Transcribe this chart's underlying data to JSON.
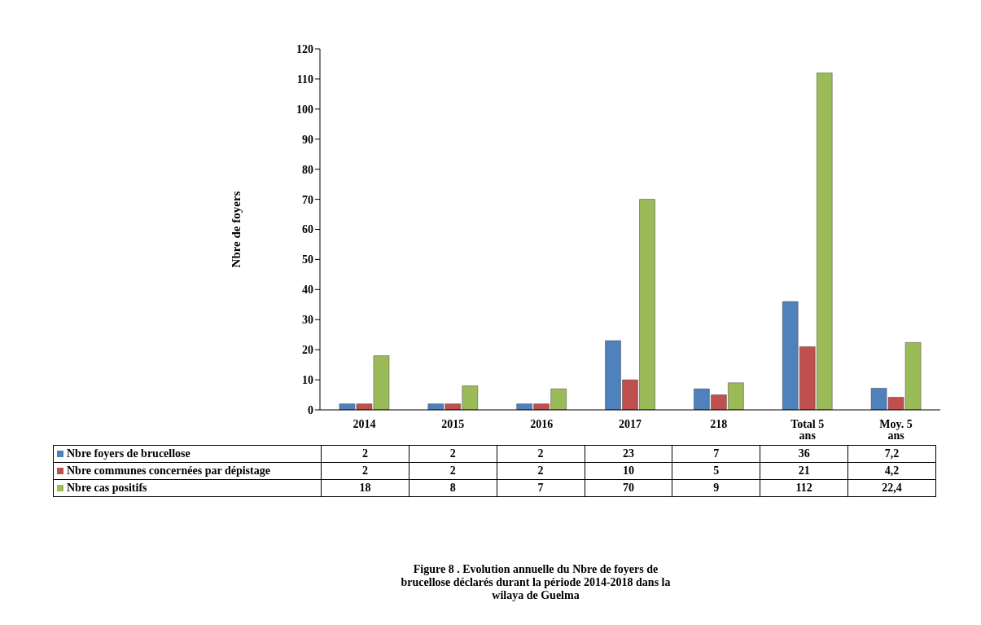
{
  "chart_data": {
    "type": "bar",
    "title": "Figure 8 . Evolution annuelle du Nbre de foyers de brucellose déclarés durant la période 2014-2018 dans la wilaya de Guelma",
    "ylabel": "Nbre de foyers",
    "categories": [
      "2014",
      "2015",
      "2016",
      "2017",
      "218",
      "Total 5 ans",
      "Moy. 5 ans"
    ],
    "series": [
      {
        "name": "Nbre foyers de brucellose",
        "color": "#4f81bd",
        "values": [
          2,
          2,
          2,
          23,
          7,
          36,
          7.2
        ],
        "value_labels": [
          "2",
          "2",
          "2",
          "23",
          "7",
          "36",
          "7,2"
        ]
      },
      {
        "name": "Nbre communes concernées par dépistage",
        "color": "#c0504d",
        "values": [
          2,
          2,
          2,
          10,
          5,
          21,
          4.2
        ],
        "value_labels": [
          "2",
          "2",
          "2",
          "10",
          "5",
          "21",
          "4,2"
        ]
      },
      {
        "name": "Nbre cas positifs",
        "color": "#9bbb59",
        "values": [
          18,
          8,
          7,
          70,
          9,
          112,
          22.4
        ],
        "value_labels": [
          "18",
          "8",
          "7",
          "70",
          "9",
          "112",
          "22,4"
        ]
      }
    ],
    "ylim": [
      0,
      120
    ],
    "yticks": [
      0,
      10,
      20,
      30,
      40,
      50,
      60,
      70,
      80,
      90,
      100,
      110,
      120
    ],
    "legend": "bottom"
  }
}
